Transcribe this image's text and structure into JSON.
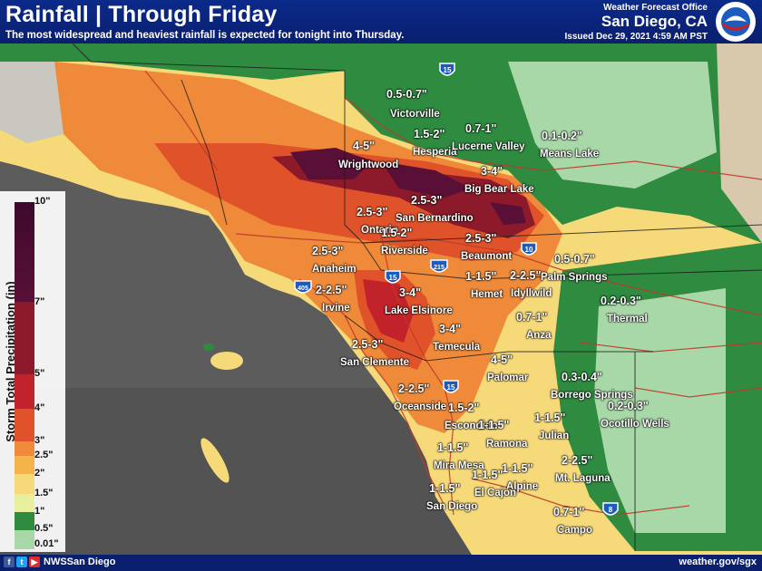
{
  "header": {
    "title": "Rainfall | Through Friday",
    "subtitle": "The most widespread and heaviest rainfall is expected for tonight into Thursday.",
    "office_label": "Weather Forecast Office",
    "office_city": "San Diego, CA",
    "issued": "Issued Dec 29, 2021 4:59 AM PST"
  },
  "footer": {
    "handle": "NWSSan Diego",
    "website": "weather.gov/sgx",
    "social_icons": [
      "facebook-icon",
      "twitter-icon",
      "youtube-icon"
    ]
  },
  "legend": {
    "title": "Storm Total Precipitation (in)",
    "ticks": [
      "10\"",
      "7\"",
      "5\"",
      "4\"",
      "3\"",
      "2.5\"",
      "2\"",
      "1.5\"",
      "1\"",
      "0.5\"",
      "0.01\""
    ],
    "colors": [
      "#3d0a2c",
      "#5a1036",
      "#8c1a2a",
      "#c2232a",
      "#e0532a",
      "#ef8a3a",
      "#f5b44a",
      "#f6d978",
      "#e8f0a0",
      "#2e8b3f",
      "#a8d8a8"
    ]
  },
  "places": [
    {
      "name": "Victorville"
    },
    {
      "name": "Hesperia"
    },
    {
      "name": "Lucerne Valley"
    },
    {
      "name": "Means Lake"
    },
    {
      "name": "Wrightwood"
    },
    {
      "name": "Big Bear Lake"
    },
    {
      "name": "San Bernardino"
    },
    {
      "name": "Ontario"
    },
    {
      "name": "Riverside"
    },
    {
      "name": "Beaumont"
    },
    {
      "name": "Palm Springs"
    },
    {
      "name": "Anaheim"
    },
    {
      "name": "Hemet"
    },
    {
      "name": "Idyllwild"
    },
    {
      "name": "Thermal"
    },
    {
      "name": "Irvine"
    },
    {
      "name": "Lake Elsinore"
    },
    {
      "name": "Anza"
    },
    {
      "name": "Temecula"
    },
    {
      "name": "San Clemente"
    },
    {
      "name": "Palomar"
    },
    {
      "name": "Borrego Springs"
    },
    {
      "name": "Oceanside"
    },
    {
      "name": "Ocotillo Wells"
    },
    {
      "name": "Escondido"
    },
    {
      "name": "Ramona"
    },
    {
      "name": "Julian"
    },
    {
      "name": "Mira Mesa"
    },
    {
      "name": "Alpine"
    },
    {
      "name": "El Cajon"
    },
    {
      "name": "Mt. Laguna"
    },
    {
      "name": "San Diego"
    },
    {
      "name": "Campo"
    }
  ],
  "amounts": [
    {
      "value": "0.5-0.7\""
    },
    {
      "value": "1.5-2\""
    },
    {
      "value": "0.7-1\""
    },
    {
      "value": "0.1-0.2\""
    },
    {
      "value": "4-5\""
    },
    {
      "value": "3-4\""
    },
    {
      "value": "2.5-3\""
    },
    {
      "value": "2.5-3\""
    },
    {
      "value": "1.5-2\""
    },
    {
      "value": "2.5-3\""
    },
    {
      "value": "0.5-0.7\""
    },
    {
      "value": "2.5-3\""
    },
    {
      "value": "1-1.5\""
    },
    {
      "value": "2-2.5\""
    },
    {
      "value": "0.2-0.3\""
    },
    {
      "value": "2-2.5\""
    },
    {
      "value": "3-4\""
    },
    {
      "value": "0.7-1\""
    },
    {
      "value": "3-4\""
    },
    {
      "value": "2.5-3\""
    },
    {
      "value": "4-5\""
    },
    {
      "value": "0.3-0.4\""
    },
    {
      "value": "2-2.5\""
    },
    {
      "value": "0.2-0.3\""
    },
    {
      "value": "1.5-2\""
    },
    {
      "value": "1-1.5\""
    },
    {
      "value": "1-1.5\""
    },
    {
      "value": "1-1.5\""
    },
    {
      "value": "1-1.5\""
    },
    {
      "value": "1-1.5\""
    },
    {
      "value": "2-2.5\""
    },
    {
      "value": "1-1.5\""
    },
    {
      "value": "0.7-1\""
    }
  ],
  "highways": [
    {
      "number": "15"
    },
    {
      "number": "10"
    },
    {
      "number": "15"
    },
    {
      "number": "215"
    },
    {
      "number": "405"
    },
    {
      "number": "15"
    },
    {
      "number": "8"
    }
  ]
}
